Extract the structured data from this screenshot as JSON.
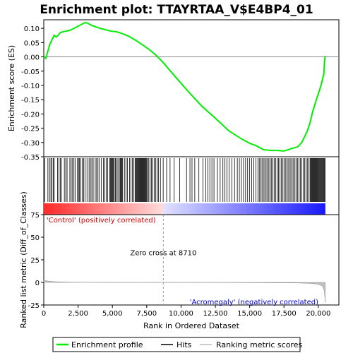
{
  "chart_data": {
    "type": "line",
    "title": "Enrichment plot: TTAYRTAA_V$E4BP4_01",
    "top_panel": {
      "ylabel": "Enrichment score (ES)",
      "ylim": [
        -0.35,
        0.13
      ],
      "yticks": [
        "0.10",
        "0.05",
        "0.00",
        "-0.05",
        "-0.10",
        "-0.15",
        "-0.20",
        "-0.25",
        "-0.30",
        "-0.35"
      ],
      "ytick_values": [
        0.1,
        0.05,
        0.0,
        -0.05,
        -0.1,
        -0.15,
        -0.2,
        -0.25,
        -0.3,
        -0.35
      ],
      "series_name": "Enrichment profile",
      "color": "#00ee00",
      "x": [
        0,
        150,
        300,
        450,
        600,
        750,
        900,
        1050,
        1200,
        1400,
        1600,
        1800,
        2000,
        2200,
        2400,
        2600,
        2800,
        3000,
        3200,
        3500,
        3800,
        4100,
        4500,
        4900,
        5300,
        5700,
        6200,
        6700,
        7200,
        7700,
        8200,
        8700,
        9500,
        10500,
        11500,
        12500,
        13500,
        14500,
        15000,
        15500,
        16000,
        16500,
        17000,
        17500,
        18000,
        18500,
        18800,
        19000,
        19200,
        19400,
        19600,
        19800,
        20000,
        20200,
        20400,
        20450,
        20500
      ],
      "y": [
        0.0,
        -0.005,
        0.02,
        0.045,
        0.06,
        0.075,
        0.07,
        0.075,
        0.085,
        0.088,
        0.09,
        0.092,
        0.095,
        0.1,
        0.105,
        0.11,
        0.115,
        0.12,
        0.118,
        0.11,
        0.105,
        0.1,
        0.095,
        0.09,
        0.088,
        0.082,
        0.072,
        0.058,
        0.042,
        0.025,
        0.005,
        -0.02,
        -0.065,
        -0.12,
        -0.172,
        -0.215,
        -0.26,
        -0.29,
        -0.303,
        -0.312,
        -0.325,
        -0.328,
        -0.328,
        -0.33,
        -0.322,
        -0.315,
        -0.3,
        -0.28,
        -0.26,
        -0.23,
        -0.19,
        -0.16,
        -0.13,
        -0.1,
        -0.06,
        -0.02,
        0.003
      ]
    },
    "hits_panel": {
      "legend_label": "Hits",
      "hit_ranks": [
        80,
        300,
        420,
        520,
        600,
        700,
        760,
        1000,
        1100,
        1200,
        1280,
        1500,
        1600,
        1700,
        1900,
        2000,
        2100,
        2200,
        2300,
        2450,
        2550,
        2600,
        2700,
        2800,
        2900,
        3000,
        3150,
        3300,
        3400,
        3500,
        3600,
        3750,
        3850,
        3950,
        4050,
        4200,
        4350,
        4450,
        4550,
        4650,
        4800,
        4850,
        4900,
        4950,
        5000,
        5050,
        5100,
        5200,
        5250,
        5350,
        5450,
        5550,
        5600,
        5650,
        5700,
        5750,
        5900,
        6000,
        6100,
        6250,
        6350,
        6450,
        6550,
        6650,
        6700,
        6750,
        6800,
        6850,
        6900,
        6950,
        7000,
        7050,
        7100,
        7150,
        7200,
        7250,
        7300,
        7350,
        7400,
        7450,
        7500,
        7550,
        7650,
        7750,
        7850,
        7950,
        8050,
        8150,
        8250,
        8350,
        8500,
        8700,
        8950,
        9200,
        9500,
        9900,
        10400,
        10650,
        10800,
        11000,
        11300,
        11600,
        11800,
        11950,
        12100,
        12250,
        12400,
        12650,
        12850,
        13050,
        13200,
        13350,
        13500,
        13700,
        13900,
        14100,
        14250,
        14400,
        14550,
        14700,
        14850,
        15000,
        15150,
        15300,
        15450,
        15600,
        15700,
        15800,
        15900,
        16000,
        16100,
        16200,
        16300,
        16400,
        16500,
        16600,
        16700,
        16800,
        16900,
        17000,
        17100,
        17200,
        17300,
        17400,
        17500,
        17600,
        17700,
        17800,
        17900,
        18000,
        18100,
        18200,
        18300,
        18400,
        18500,
        18600,
        18700,
        18800,
        18900,
        19000,
        19100,
        19200,
        19300,
        19400,
        19450,
        19500,
        19550,
        19600,
        19650,
        19700,
        19750,
        19800,
        19850,
        19900,
        19950,
        20000,
        20050,
        20100,
        20150,
        20200,
        20250,
        20300,
        20350,
        20400,
        20450,
        20500
      ]
    },
    "rank_panel": {
      "ylabel": "Ranked list metric (Diff_of_Classes)",
      "ylim": [
        -25,
        75
      ],
      "yticks": [
        "75",
        "50",
        "25",
        "0",
        "-25"
      ],
      "ytick_values": [
        75,
        50,
        25,
        0,
        -25
      ],
      "xlabel": "Rank in Ordered Dataset",
      "xlim": [
        0,
        21500
      ],
      "xticks": [
        "0",
        "2,500",
        "5,000",
        "7,500",
        "10,000",
        "12,500",
        "15,000",
        "17,500",
        "20,000"
      ],
      "xtick_values": [
        0,
        2500,
        5000,
        7500,
        10000,
        12500,
        15000,
        17500,
        20000
      ],
      "metric_x": [
        0,
        100,
        300,
        600,
        1000,
        2000,
        4000,
        8700,
        14000,
        18500,
        19500,
        20000,
        20300,
        20450,
        20500
      ],
      "metric_y": [
        3,
        2,
        1.5,
        1,
        0.6,
        0.3,
        0.1,
        0,
        -0.2,
        -0.6,
        -1.2,
        -2,
        -4,
        -10,
        -22
      ],
      "positive_label": "'Control' (positively correlated)",
      "negative_label": "'Acromegaly' (negatively correlated)",
      "zero_cross_label": "Zero cross at 8710",
      "zero_cross": 8710,
      "positive_color": "#cc0000",
      "negative_color": "#0000cc"
    },
    "legend": [
      "Enrichment profile",
      "Hits",
      "Ranking metric scores"
    ],
    "legend_placement": "bottom"
  }
}
